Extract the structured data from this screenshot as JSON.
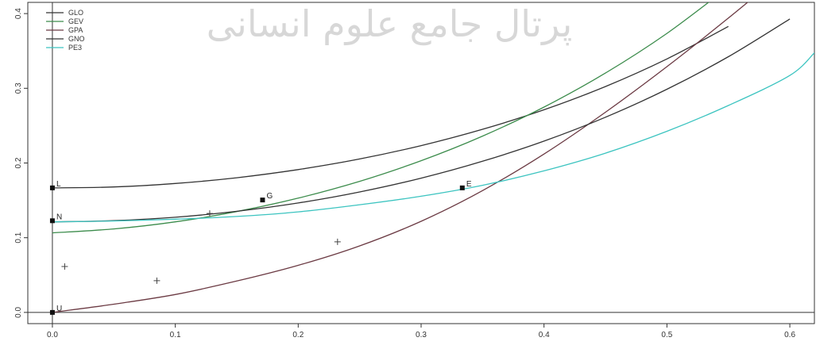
{
  "watermark": "پرتال جامع علوم انسانی",
  "chart_data": {
    "type": "line",
    "title": "",
    "xlabel": "",
    "ylabel": "",
    "xlim": [
      -0.02,
      0.62
    ],
    "ylim": [
      -0.015,
      0.415
    ],
    "x_ticks": [
      0.0,
      0.1,
      0.2,
      0.3,
      0.4,
      0.5,
      0.6
    ],
    "x_tick_labels": [
      "0.0",
      "0.1",
      "0.2",
      "0.3",
      "0.4",
      "0.5",
      "0.6"
    ],
    "y_ticks": [
      0.0,
      0.1,
      0.2,
      0.3,
      0.4
    ],
    "y_tick_labels": [
      "0.0",
      "0.1",
      "0.2",
      "0.3",
      "0.4"
    ],
    "legend_position": "top-left",
    "reference_lines": {
      "hline_y": 0,
      "vline_x": 0
    },
    "series": [
      {
        "name": "GLO",
        "color": "#333333",
        "x": [
          0,
          0.05,
          0.1,
          0.15,
          0.2,
          0.25,
          0.3,
          0.35,
          0.4,
          0.45,
          0.5,
          0.55
        ],
        "y": [
          0.1667,
          0.1679,
          0.1726,
          0.1803,
          0.1912,
          0.2054,
          0.2233,
          0.2451,
          0.2712,
          0.3024,
          0.3393,
          0.3828
        ]
      },
      {
        "name": "GEV",
        "color": "#3c8c4c",
        "x": [
          0,
          0.05,
          0.1,
          0.15,
          0.2,
          0.25,
          0.3,
          0.35,
          0.4,
          0.45,
          0.5,
          0.55
        ],
        "y": [
          0.1065,
          0.1118,
          0.1212,
          0.135,
          0.153,
          0.1755,
          0.2031,
          0.236,
          0.2749,
          0.3204,
          0.3735,
          0.4354
        ]
      },
      {
        "name": "GPA",
        "color": "#6b3a43",
        "x": [
          0,
          0.05,
          0.1,
          0.15,
          0.2,
          0.25,
          0.3,
          0.35,
          0.4,
          0.45,
          0.5,
          0.55,
          0.6
        ],
        "y": [
          0.0,
          0.011,
          0.024,
          0.042,
          0.063,
          0.089,
          0.122,
          0.163,
          0.212,
          0.268,
          0.329,
          0.394,
          0.462
        ]
      },
      {
        "name": "GNO",
        "color": "#333333",
        "x": [
          0,
          0.05,
          0.1,
          0.15,
          0.2,
          0.25,
          0.3,
          0.35,
          0.4,
          0.45,
          0.5,
          0.55,
          0.6
        ],
        "y": [
          0.1212,
          0.1228,
          0.1274,
          0.1353,
          0.1465,
          0.1612,
          0.1797,
          0.2023,
          0.2293,
          0.2613,
          0.2987,
          0.3423,
          0.3928
        ]
      },
      {
        "name": "PE3",
        "color": "#3cc4c0",
        "x": [
          0,
          0.05,
          0.1,
          0.15,
          0.2,
          0.25,
          0.3,
          0.35,
          0.4,
          0.45,
          0.5,
          0.55,
          0.6,
          0.62
        ],
        "y": [
          0.1212,
          0.1224,
          0.1248,
          0.1284,
          0.1346,
          0.1441,
          0.1555,
          0.1702,
          0.1895,
          0.2132,
          0.2425,
          0.277,
          0.3172,
          0.3475
        ]
      }
    ],
    "labeled_points": [
      {
        "label": "L",
        "x": 0.0,
        "y": 0.1667
      },
      {
        "label": "N",
        "x": 0.0,
        "y": 0.1227
      },
      {
        "label": "U",
        "x": 0.0,
        "y": 0.0
      },
      {
        "label": "G",
        "x": 0.171,
        "y": 0.1505
      },
      {
        "label": "E",
        "x": 0.3335,
        "y": 0.1667
      }
    ],
    "sample_points": [
      {
        "x": 0.01,
        "y": 0.0615
      },
      {
        "x": 0.085,
        "y": 0.0425
      },
      {
        "x": 0.128,
        "y": 0.1325
      },
      {
        "x": 0.232,
        "y": 0.0945
      }
    ]
  }
}
